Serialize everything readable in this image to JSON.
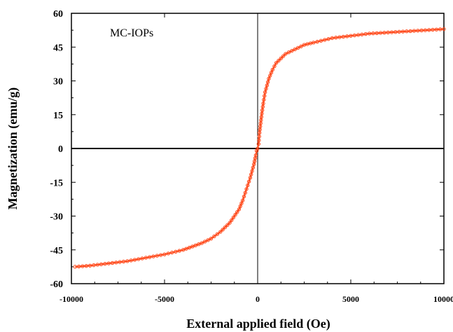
{
  "chart_data": {
    "type": "scatter",
    "title": "",
    "annotation": "MC-IOPs",
    "xlabel": "External applied field (Oe)",
    "ylabel": "Magnetization (emu/g)",
    "xlim": [
      -10000,
      10000
    ],
    "ylim": [
      -60,
      60
    ],
    "xticks": [
      "-10000",
      "-5000",
      "0",
      "5000",
      "10000"
    ],
    "yticks": [
      "60",
      "45",
      "30",
      "15",
      "0",
      "-15",
      "-30",
      "-45",
      "-60"
    ],
    "grid": false,
    "series_color": "#ff4a1c",
    "series": [
      {
        "x": [
          -9800,
          -9000,
          -8000,
          -7000,
          -6000,
          -5000,
          -4000,
          -3000,
          -2500,
          -2000,
          -1500,
          -1000,
          -800,
          -600,
          -400,
          -300,
          -200,
          -100,
          -50,
          0,
          50,
          100,
          200,
          300,
          400,
          600,
          800,
          1000,
          1500,
          2000,
          2500,
          3000,
          4000,
          5000,
          6000,
          7000,
          8000,
          9000,
          10000
        ],
        "y": [
          -52.5,
          -52,
          -51,
          -50,
          -48.5,
          -47,
          -45,
          -42,
          -40,
          -37,
          -33,
          -27,
          -23,
          -18,
          -13,
          -10,
          -7,
          -3,
          -1,
          0,
          2,
          7,
          14,
          20,
          25,
          31,
          35,
          38,
          42,
          44,
          46,
          47,
          49,
          50,
          51,
          51.5,
          52,
          52.5,
          53
        ]
      }
    ]
  }
}
